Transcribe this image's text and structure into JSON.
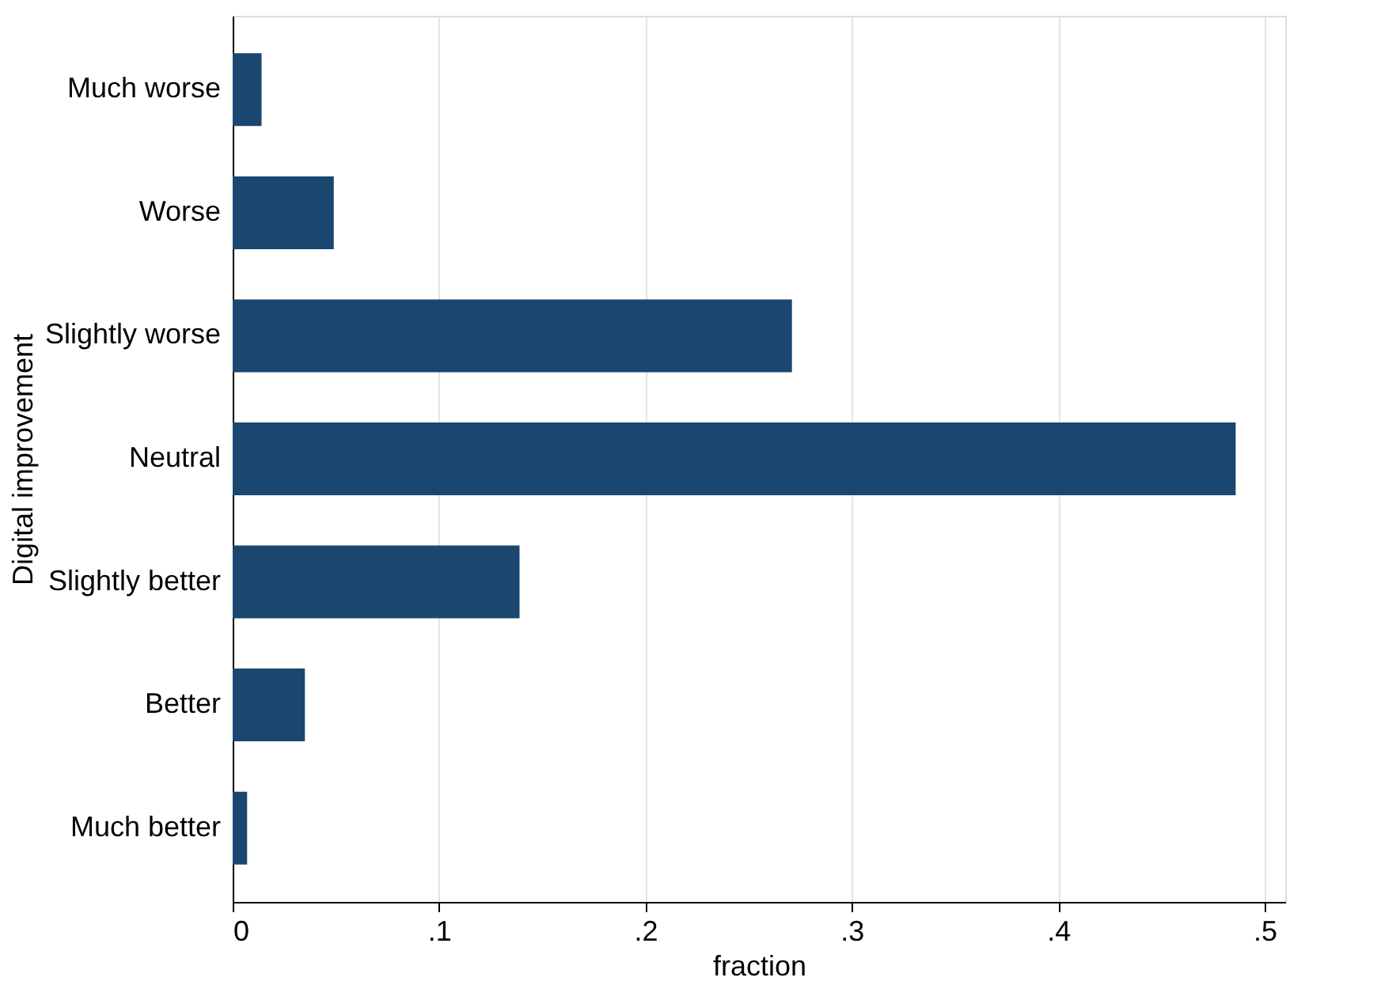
{
  "chart_data": {
    "type": "bar",
    "orientation": "horizontal",
    "xlabel": "fraction",
    "ylabel": "Digital improvement",
    "categories": [
      "Much worse",
      "Worse",
      "Slightly worse",
      "Neutral",
      "Slightly better",
      "Better",
      "Much better"
    ],
    "values": [
      0.014,
      0.049,
      0.271,
      0.486,
      0.139,
      0.035,
      0.007
    ],
    "color": "#1a476f",
    "xlim": [
      0,
      0.51
    ],
    "xticks": [
      0,
      {
        "value": 0.1,
        "label": ".1"
      },
      {
        "value": 0.2,
        "label": ".2"
      },
      {
        "value": 0.3,
        "label": ".3"
      },
      {
        "value": 0.4,
        "label": ".4"
      },
      {
        "value": 0.5,
        "label": ".5"
      }
    ],
    "grid": "x"
  }
}
